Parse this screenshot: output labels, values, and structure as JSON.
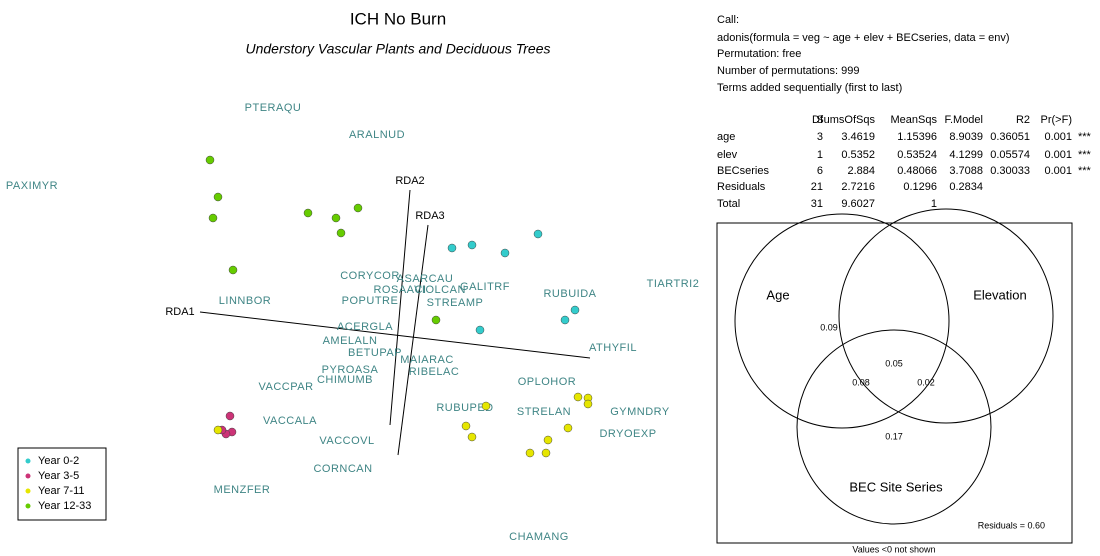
{
  "ordination": {
    "title": "ICH No Burn",
    "subtitle": "Understory Vascular Plants and Deciduous Trees",
    "axes": [
      "RDA1",
      "RDA2",
      "RDA3"
    ],
    "species": [
      "PTERAQU",
      "ARALNUD",
      "PAXIMYR",
      "LINNBOR",
      "TIARTRI2",
      "RUBUIDA",
      "GALITRF",
      "CORYCOR",
      "ASARCAU",
      "ROSAACI",
      "VIOLCAN",
      "POPUTRE",
      "STREAMP",
      "ATHYFIL",
      "ACERGLA",
      "AMELALN",
      "BETUPAP",
      "PYROASA",
      "CHIMUMB",
      "RIBELAC",
      "MAIARAC",
      "VACCPAR",
      "OPLOHOR",
      "RUBUPED",
      "STRELAN",
      "GYMNDRY",
      "DRYOEXP",
      "VACCALA",
      "VACCOVL",
      "CORNCAN",
      "MENZFER",
      "CHAMANG"
    ],
    "legend": [
      {
        "name": "Year 0-2",
        "color": "#33cccc"
      },
      {
        "name": "Year 3-5",
        "color": "#cc3377"
      },
      {
        "name": "Year 7-11",
        "color": "#e6e600"
      },
      {
        "name": "Year 12-33",
        "color": "#66cc00"
      }
    ]
  },
  "output": {
    "call": [
      "Call:",
      "adonis(formula = veg ~ age + elev + BECseries, data = env)",
      "Permutation: free",
      "Number of permutations: 999",
      "Terms added sequentially (first to last)"
    ],
    "header": [
      "Df",
      "SumsOfSqs",
      "MeanSqs",
      "F.Model",
      "R2",
      "Pr(>F)"
    ],
    "rows": [
      [
        "age",
        "3",
        "3.4619",
        "1.15396",
        "8.9039",
        "0.36051",
        "0.001",
        "***"
      ],
      [
        "elev",
        "1",
        "0.5352",
        "0.53524",
        "4.1299",
        "0.05574",
        "0.001",
        "***"
      ],
      [
        "BECseries",
        "6",
        "2.884",
        "0.48066",
        "3.7088",
        "0.30033",
        "0.001",
        "***"
      ],
      [
        "Residuals",
        "21",
        "2.7216",
        "0.1296",
        "0.2834"
      ],
      [
        "Total",
        "31",
        "9.6027",
        "1"
      ]
    ]
  },
  "venn": {
    "sets": [
      "Age",
      "Elevation",
      "BEC Site Series"
    ],
    "regions": [
      "0.09",
      "0.05",
      "0.08",
      "0.02",
      "0.17"
    ],
    "residuals": "Residuals = 0.60",
    "note": "Values <0 not shown"
  }
}
